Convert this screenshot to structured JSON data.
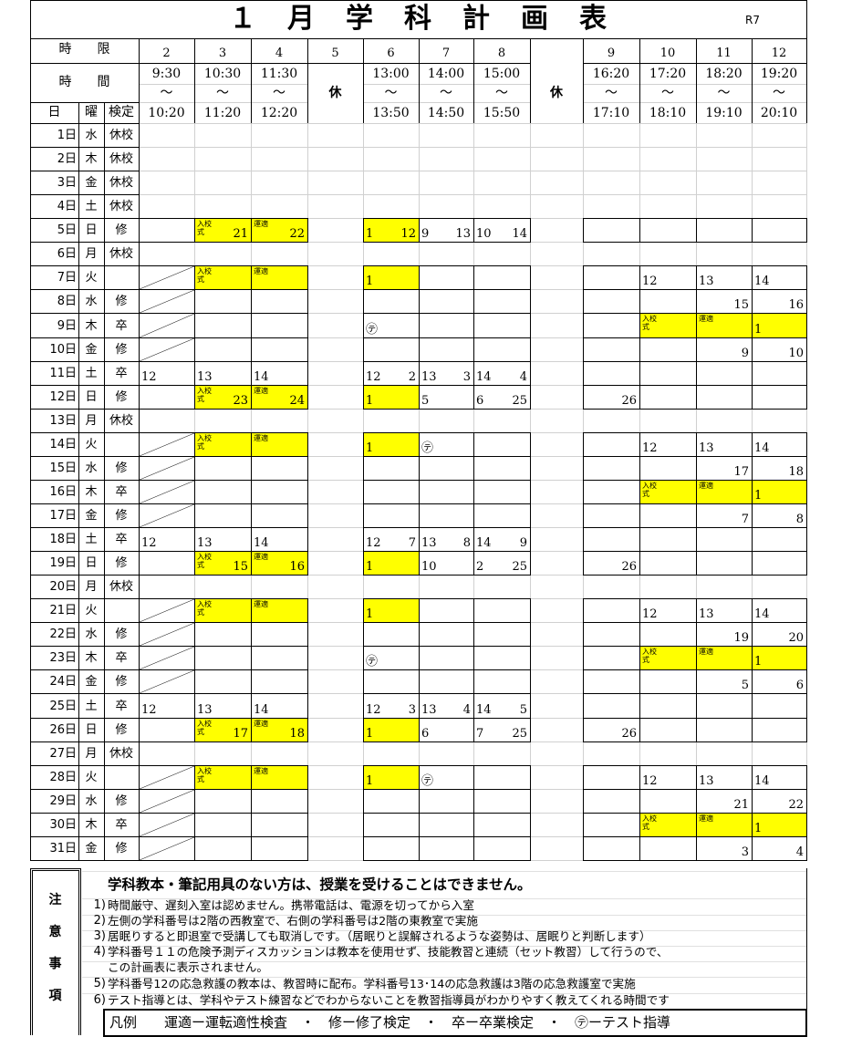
{
  "title": "１月学科計画表",
  "era": "R7",
  "header": {
    "period_label": "時　　限",
    "time_label": "時　　間",
    "day_label": "日",
    "dow_label": "曜",
    "exam_label": "検定",
    "tilde": "～",
    "break_label": "休",
    "periods": [
      {
        "no": "2",
        "start": "9:30",
        "end": "10:20"
      },
      {
        "no": "3",
        "start": "10:30",
        "end": "11:20"
      },
      {
        "no": "4",
        "start": "11:30",
        "end": "12:20"
      },
      {
        "no": "5",
        "start": "",
        "end": "",
        "is_break": true
      },
      {
        "no": "6",
        "start": "13:00",
        "end": "13:50"
      },
      {
        "no": "7",
        "start": "14:00",
        "end": "14:50"
      },
      {
        "no": "8",
        "start": "15:00",
        "end": "15:50"
      },
      {
        "no": "9",
        "start": "16:20",
        "end": "17:10"
      },
      {
        "no": "10",
        "start": "17:20",
        "end": "18:10"
      },
      {
        "no": "11",
        "start": "18:20",
        "end": "19:10"
      },
      {
        "no": "12",
        "start": "19:20",
        "end": "20:10"
      }
    ]
  },
  "colors": {
    "highlight": "#ffff00",
    "border": "#000000",
    "grid": "#d0d0d0"
  },
  "schedule": {
    "rows": [
      {
        "day": "1日",
        "dow": "水",
        "exam": "休校",
        "cells": {}
      },
      {
        "day": "2日",
        "dow": "木",
        "exam": "休校",
        "cells": {}
      },
      {
        "day": "3日",
        "dow": "金",
        "exam": "休校",
        "cells": {}
      },
      {
        "day": "4日",
        "dow": "土",
        "exam": "休校",
        "cells": {}
      },
      {
        "day": "5日",
        "dow": "日",
        "exam": "修",
        "active": true,
        "cells": {
          "3": {
            "tag": "入校式",
            "r": "21",
            "hl": true
          },
          "4": {
            "tag": "運適",
            "r": "22",
            "hl": true
          },
          "6": {
            "l": "1",
            "r": "12",
            "hl": true
          },
          "7": {
            "l": "9",
            "r": "13"
          },
          "8": {
            "l": "10",
            "r": "14"
          }
        }
      },
      {
        "day": "6日",
        "dow": "月",
        "exam": "休校",
        "cells": {}
      },
      {
        "day": "7日",
        "dow": "火",
        "exam": "",
        "active": true,
        "cells": {
          "2": {
            "slash": true
          },
          "3": {
            "tag": "入校式",
            "hl": true
          },
          "4": {
            "tag": "運適",
            "hl": true
          },
          "6": {
            "l": "1",
            "hl": true
          },
          "10": {
            "l": "12"
          },
          "11": {
            "l": "13"
          },
          "12": {
            "l": "14"
          }
        }
      },
      {
        "day": "8日",
        "dow": "水",
        "exam": "修",
        "active": true,
        "cells": {
          "2": {
            "slash": true
          },
          "11": {
            "r": "15"
          },
          "12": {
            "r": "16"
          }
        }
      },
      {
        "day": "9日",
        "dow": "木",
        "exam": "卒",
        "active": true,
        "cells": {
          "2": {
            "slash": true
          },
          "6": {
            "l": "㋢"
          },
          "10": {
            "tag": "入校式",
            "hl": true
          },
          "11": {
            "tag": "運適",
            "hl": true
          },
          "12": {
            "l": "1",
            "hl": true
          }
        }
      },
      {
        "day": "10日",
        "dow": "金",
        "exam": "修",
        "active": true,
        "cells": {
          "2": {
            "slash": true
          },
          "11": {
            "r": "9"
          },
          "12": {
            "r": "10"
          }
        }
      },
      {
        "day": "11日",
        "dow": "土",
        "exam": "卒",
        "active": true,
        "cells": {
          "2": {
            "l": "12"
          },
          "3": {
            "l": "13"
          },
          "4": {
            "l": "14"
          },
          "6": {
            "l": "12",
            "r": "2"
          },
          "7": {
            "l": "13",
            "r": "3"
          },
          "8": {
            "l": "14",
            "r": "4"
          }
        }
      },
      {
        "day": "12日",
        "dow": "日",
        "exam": "修",
        "active": true,
        "cells": {
          "3": {
            "tag": "入校式",
            "r": "23",
            "hl": true
          },
          "4": {
            "tag": "運適",
            "r": "24",
            "hl": true
          },
          "6": {
            "l": "1",
            "hl": true
          },
          "7": {
            "l": "5"
          },
          "8": {
            "l": "6",
            "r": "25"
          },
          "9": {
            "r": "26"
          }
        }
      },
      {
        "day": "13日",
        "dow": "月",
        "exam": "休校",
        "cells": {}
      },
      {
        "day": "14日",
        "dow": "火",
        "exam": "",
        "active": true,
        "cells": {
          "2": {
            "slash": true
          },
          "3": {
            "tag": "入校式",
            "hl": true
          },
          "4": {
            "tag": "運適",
            "hl": true
          },
          "6": {
            "l": "1",
            "hl": true
          },
          "7": {
            "l": "㋢"
          },
          "10": {
            "l": "12"
          },
          "11": {
            "l": "13"
          },
          "12": {
            "l": "14"
          }
        }
      },
      {
        "day": "15日",
        "dow": "水",
        "exam": "修",
        "active": true,
        "cells": {
          "2": {
            "slash": true
          },
          "11": {
            "r": "17"
          },
          "12": {
            "r": "18"
          }
        }
      },
      {
        "day": "16日",
        "dow": "木",
        "exam": "卒",
        "active": true,
        "cells": {
          "2": {
            "slash": true
          },
          "10": {
            "tag": "入校式",
            "hl": true
          },
          "11": {
            "tag": "運適",
            "hl": true
          },
          "12": {
            "l": "1",
            "hl": true
          }
        }
      },
      {
        "day": "17日",
        "dow": "金",
        "exam": "修",
        "active": true,
        "cells": {
          "2": {
            "slash": true
          },
          "11": {
            "r": "7"
          },
          "12": {
            "r": "8"
          }
        }
      },
      {
        "day": "18日",
        "dow": "土",
        "exam": "卒",
        "active": true,
        "cells": {
          "2": {
            "l": "12"
          },
          "3": {
            "l": "13"
          },
          "4": {
            "l": "14"
          },
          "6": {
            "l": "12",
            "r": "7"
          },
          "7": {
            "l": "13",
            "r": "8"
          },
          "8": {
            "l": "14",
            "r": "9"
          }
        }
      },
      {
        "day": "19日",
        "dow": "日",
        "exam": "修",
        "active": true,
        "cells": {
          "3": {
            "tag": "入校式",
            "r": "15",
            "hl": true
          },
          "4": {
            "tag": "運適",
            "r": "16",
            "hl": true
          },
          "6": {
            "l": "1",
            "hl": true
          },
          "7": {
            "l": "10"
          },
          "8": {
            "l": "2",
            "r": "25"
          },
          "9": {
            "r": "26"
          }
        }
      },
      {
        "day": "20日",
        "dow": "月",
        "exam": "休校",
        "cells": {}
      },
      {
        "day": "21日",
        "dow": "火",
        "exam": "",
        "active": true,
        "cells": {
          "2": {
            "slash": true
          },
          "3": {
            "tag": "入校式",
            "hl": true
          },
          "4": {
            "tag": "運適",
            "hl": true
          },
          "6": {
            "l": "1",
            "hl": true
          },
          "10": {
            "l": "12"
          },
          "11": {
            "l": "13"
          },
          "12": {
            "l": "14"
          }
        }
      },
      {
        "day": "22日",
        "dow": "水",
        "exam": "修",
        "active": true,
        "cells": {
          "2": {
            "slash": true
          },
          "11": {
            "r": "19"
          },
          "12": {
            "r": "20"
          }
        }
      },
      {
        "day": "23日",
        "dow": "木",
        "exam": "卒",
        "active": true,
        "cells": {
          "2": {
            "slash": true
          },
          "6": {
            "l": "㋢"
          },
          "10": {
            "tag": "入校式",
            "hl": true
          },
          "11": {
            "tag": "運適",
            "hl": true
          },
          "12": {
            "l": "1",
            "hl": true
          }
        }
      },
      {
        "day": "24日",
        "dow": "金",
        "exam": "修",
        "active": true,
        "cells": {
          "2": {
            "slash": true
          },
          "11": {
            "r": "5"
          },
          "12": {
            "r": "6"
          }
        }
      },
      {
        "day": "25日",
        "dow": "土",
        "exam": "卒",
        "active": true,
        "cells": {
          "2": {
            "l": "12"
          },
          "3": {
            "l": "13"
          },
          "4": {
            "l": "14"
          },
          "6": {
            "l": "12",
            "r": "3"
          },
          "7": {
            "l": "13",
            "r": "4"
          },
          "8": {
            "l": "14",
            "r": "5"
          }
        }
      },
      {
        "day": "26日",
        "dow": "日",
        "exam": "修",
        "active": true,
        "cells": {
          "3": {
            "tag": "入校式",
            "r": "17",
            "hl": true
          },
          "4": {
            "tag": "運適",
            "r": "18",
            "hl": true
          },
          "6": {
            "l": "1",
            "hl": true
          },
          "7": {
            "l": "6"
          },
          "8": {
            "l": "7",
            "r": "25"
          },
          "9": {
            "r": "26"
          }
        }
      },
      {
        "day": "27日",
        "dow": "月",
        "exam": "休校",
        "cells": {}
      },
      {
        "day": "28日",
        "dow": "火",
        "exam": "",
        "active": true,
        "cells": {
          "2": {
            "slash": true
          },
          "3": {
            "tag": "入校式",
            "hl": true
          },
          "4": {
            "tag": "運適",
            "hl": true
          },
          "6": {
            "l": "1",
            "hl": true
          },
          "7": {
            "l": "㋢"
          },
          "10": {
            "l": "12"
          },
          "11": {
            "l": "13"
          },
          "12": {
            "l": "14"
          }
        }
      },
      {
        "day": "29日",
        "dow": "水",
        "exam": "修",
        "active": true,
        "cells": {
          "2": {
            "slash": true
          },
          "11": {
            "r": "21"
          },
          "12": {
            "r": "22"
          }
        }
      },
      {
        "day": "30日",
        "dow": "木",
        "exam": "卒",
        "active": true,
        "cells": {
          "2": {
            "slash": true
          },
          "10": {
            "tag": "入校式",
            "hl": true
          },
          "11": {
            "tag": "運適",
            "hl": true
          },
          "12": {
            "l": "1",
            "hl": true
          }
        }
      },
      {
        "day": "31日",
        "dow": "金",
        "exam": "修",
        "active": true,
        "cells": {
          "2": {
            "slash": true
          },
          "11": {
            "r": "3"
          },
          "12": {
            "r": "4"
          }
        }
      }
    ]
  },
  "notes": {
    "label": [
      "注",
      "意",
      "事",
      "項"
    ],
    "headline": "学科教本・筆記用具のない方は、授業を受けることはできません。",
    "items": [
      {
        "no": "1)",
        "text": "時間厳守、遅刻入室は認めません。携帯電話は、電源を切ってから入室"
      },
      {
        "no": "2)",
        "text": "左側の学科番号は2階の西教室で、右側の学科番号は2階の東教室で実施"
      },
      {
        "no": "3)",
        "text": "居眠りすると即退室で受講しても取消しです。（居眠りと誤解されるような姿勢は、居眠りと判断します）"
      },
      {
        "no": "4)",
        "text": "学科番号１１の危険予測ディスカッションは教本を使用せず、技能教習と連続（セット教習）して行うので、"
      },
      {
        "no": "",
        "text": "この計画表に表示されません。"
      },
      {
        "no": "5)",
        "text": "学科番号12の応急救護の教本は、教習時に配布。学科番号13･14の応急救護は3階の応急救護室で実施"
      },
      {
        "no": "6)",
        "text": "テスト指導とは、学科やテスト練習などでわからないことを教習指導員がわかりやすく教えてくれる時間です"
      }
    ],
    "legend": "凡例　　運適ー運転適性検査　・　修ー修了検定　・　卒ー卒業検定　・　㋢ーテスト指導"
  }
}
